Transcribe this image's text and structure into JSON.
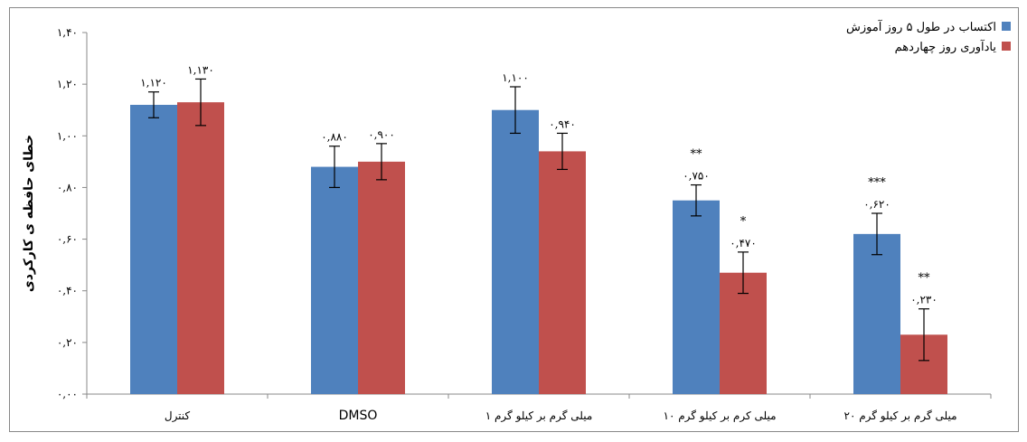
{
  "chart_data": {
    "type": "bar",
    "title": "",
    "xlabel": "",
    "ylabel": "خطای حافظه ی کارکردی",
    "ylim": [
      0,
      1.4
    ],
    "yticks": [
      "۰,۰۰",
      "۰,۲۰",
      "۰,۴۰",
      "۰,۶۰",
      "۰,۸۰",
      "۱,۰۰",
      "۱,۲۰",
      "۱,۴۰"
    ],
    "yticks_values": [
      0,
      0.2,
      0.4,
      0.6,
      0.8,
      1.0,
      1.2,
      1.4
    ],
    "categories": [
      "کنترل",
      "DMSO",
      "۱ میلی گرم بر کیلو گرم",
      "۱۰ میلی کرم بر کیلو گرم",
      "۲۰ میلی گرم بر کیلو گرم"
    ],
    "legend_position": "top-right",
    "grid": false,
    "series": [
      {
        "name": "اکتساب در طول ۵ روز آموزش",
        "color": "#4F81BD",
        "values": [
          1.12,
          0.88,
          1.1,
          0.75,
          0.62
        ],
        "errors": [
          0.05,
          0.08,
          0.09,
          0.06,
          0.08
        ],
        "labels": [
          "۱,۱۲۰",
          "۰,۸۸۰",
          "۱,۱۰۰",
          "۰,۷۵۰",
          "۰,۶۲۰"
        ],
        "significance": [
          "",
          "",
          "",
          "**",
          "***"
        ]
      },
      {
        "name": "یادآوری روز چهاردهم",
        "color": "#C0504D",
        "values": [
          1.13,
          0.9,
          0.94,
          0.47,
          0.23
        ],
        "errors": [
          0.09,
          0.07,
          0.07,
          0.08,
          0.1
        ],
        "labels": [
          "۱,۱۳۰",
          "۰,۹۰۰",
          "۰,۹۴۰",
          "۰,۴۷۰",
          "۰,۲۳۰"
        ],
        "significance": [
          "",
          "",
          "",
          "*",
          "**"
        ]
      }
    ]
  }
}
